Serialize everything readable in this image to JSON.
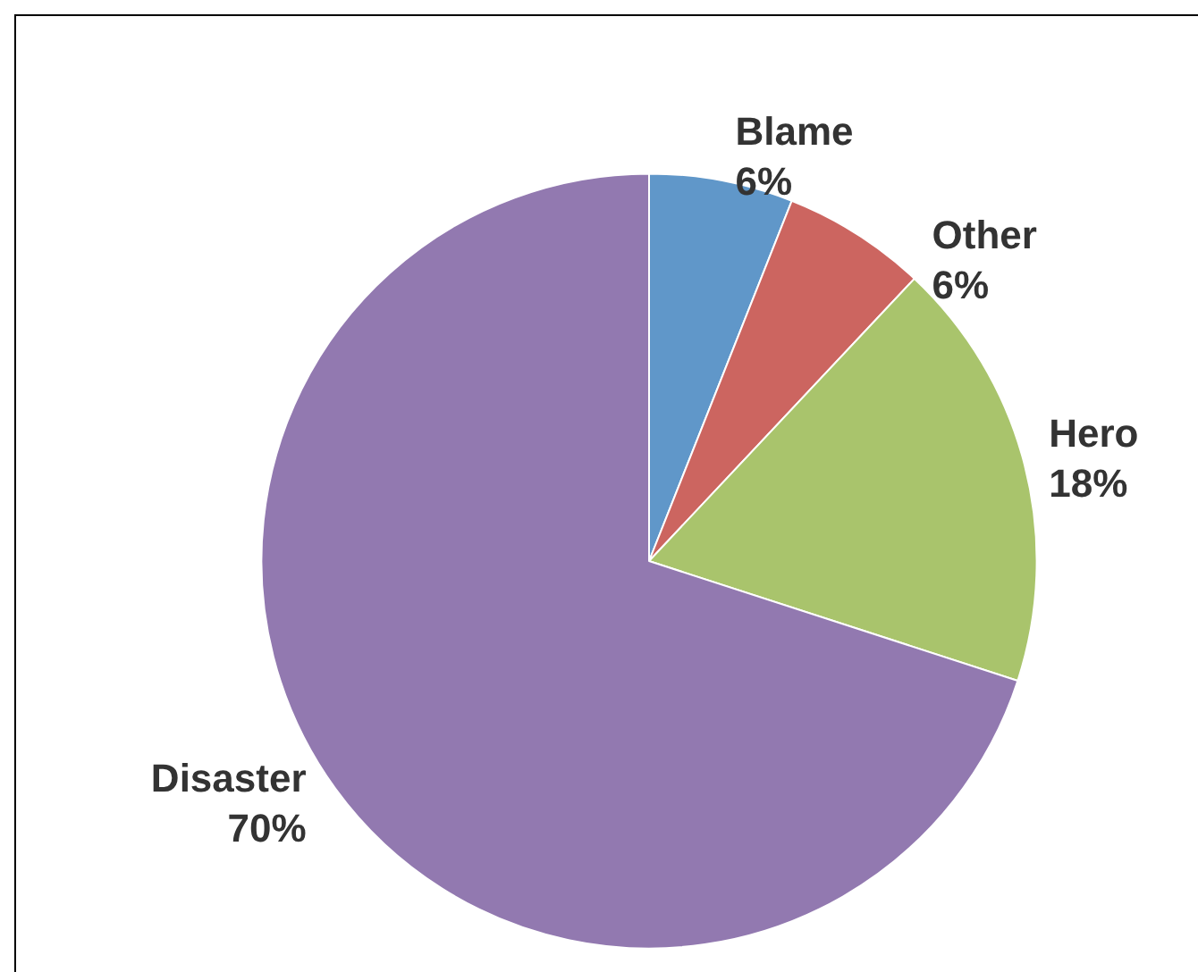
{
  "chart_data": {
    "type": "pie",
    "categories": [
      "Blame",
      "Other",
      "Hero",
      "Disaster"
    ],
    "values": [
      6,
      6,
      18,
      70
    ],
    "colors": [
      "#6097c9",
      "#cc6560",
      "#a9c46c",
      "#9279b0"
    ],
    "value_labels": [
      "6%",
      "6%",
      "18%",
      "70%"
    ],
    "legend": false
  }
}
